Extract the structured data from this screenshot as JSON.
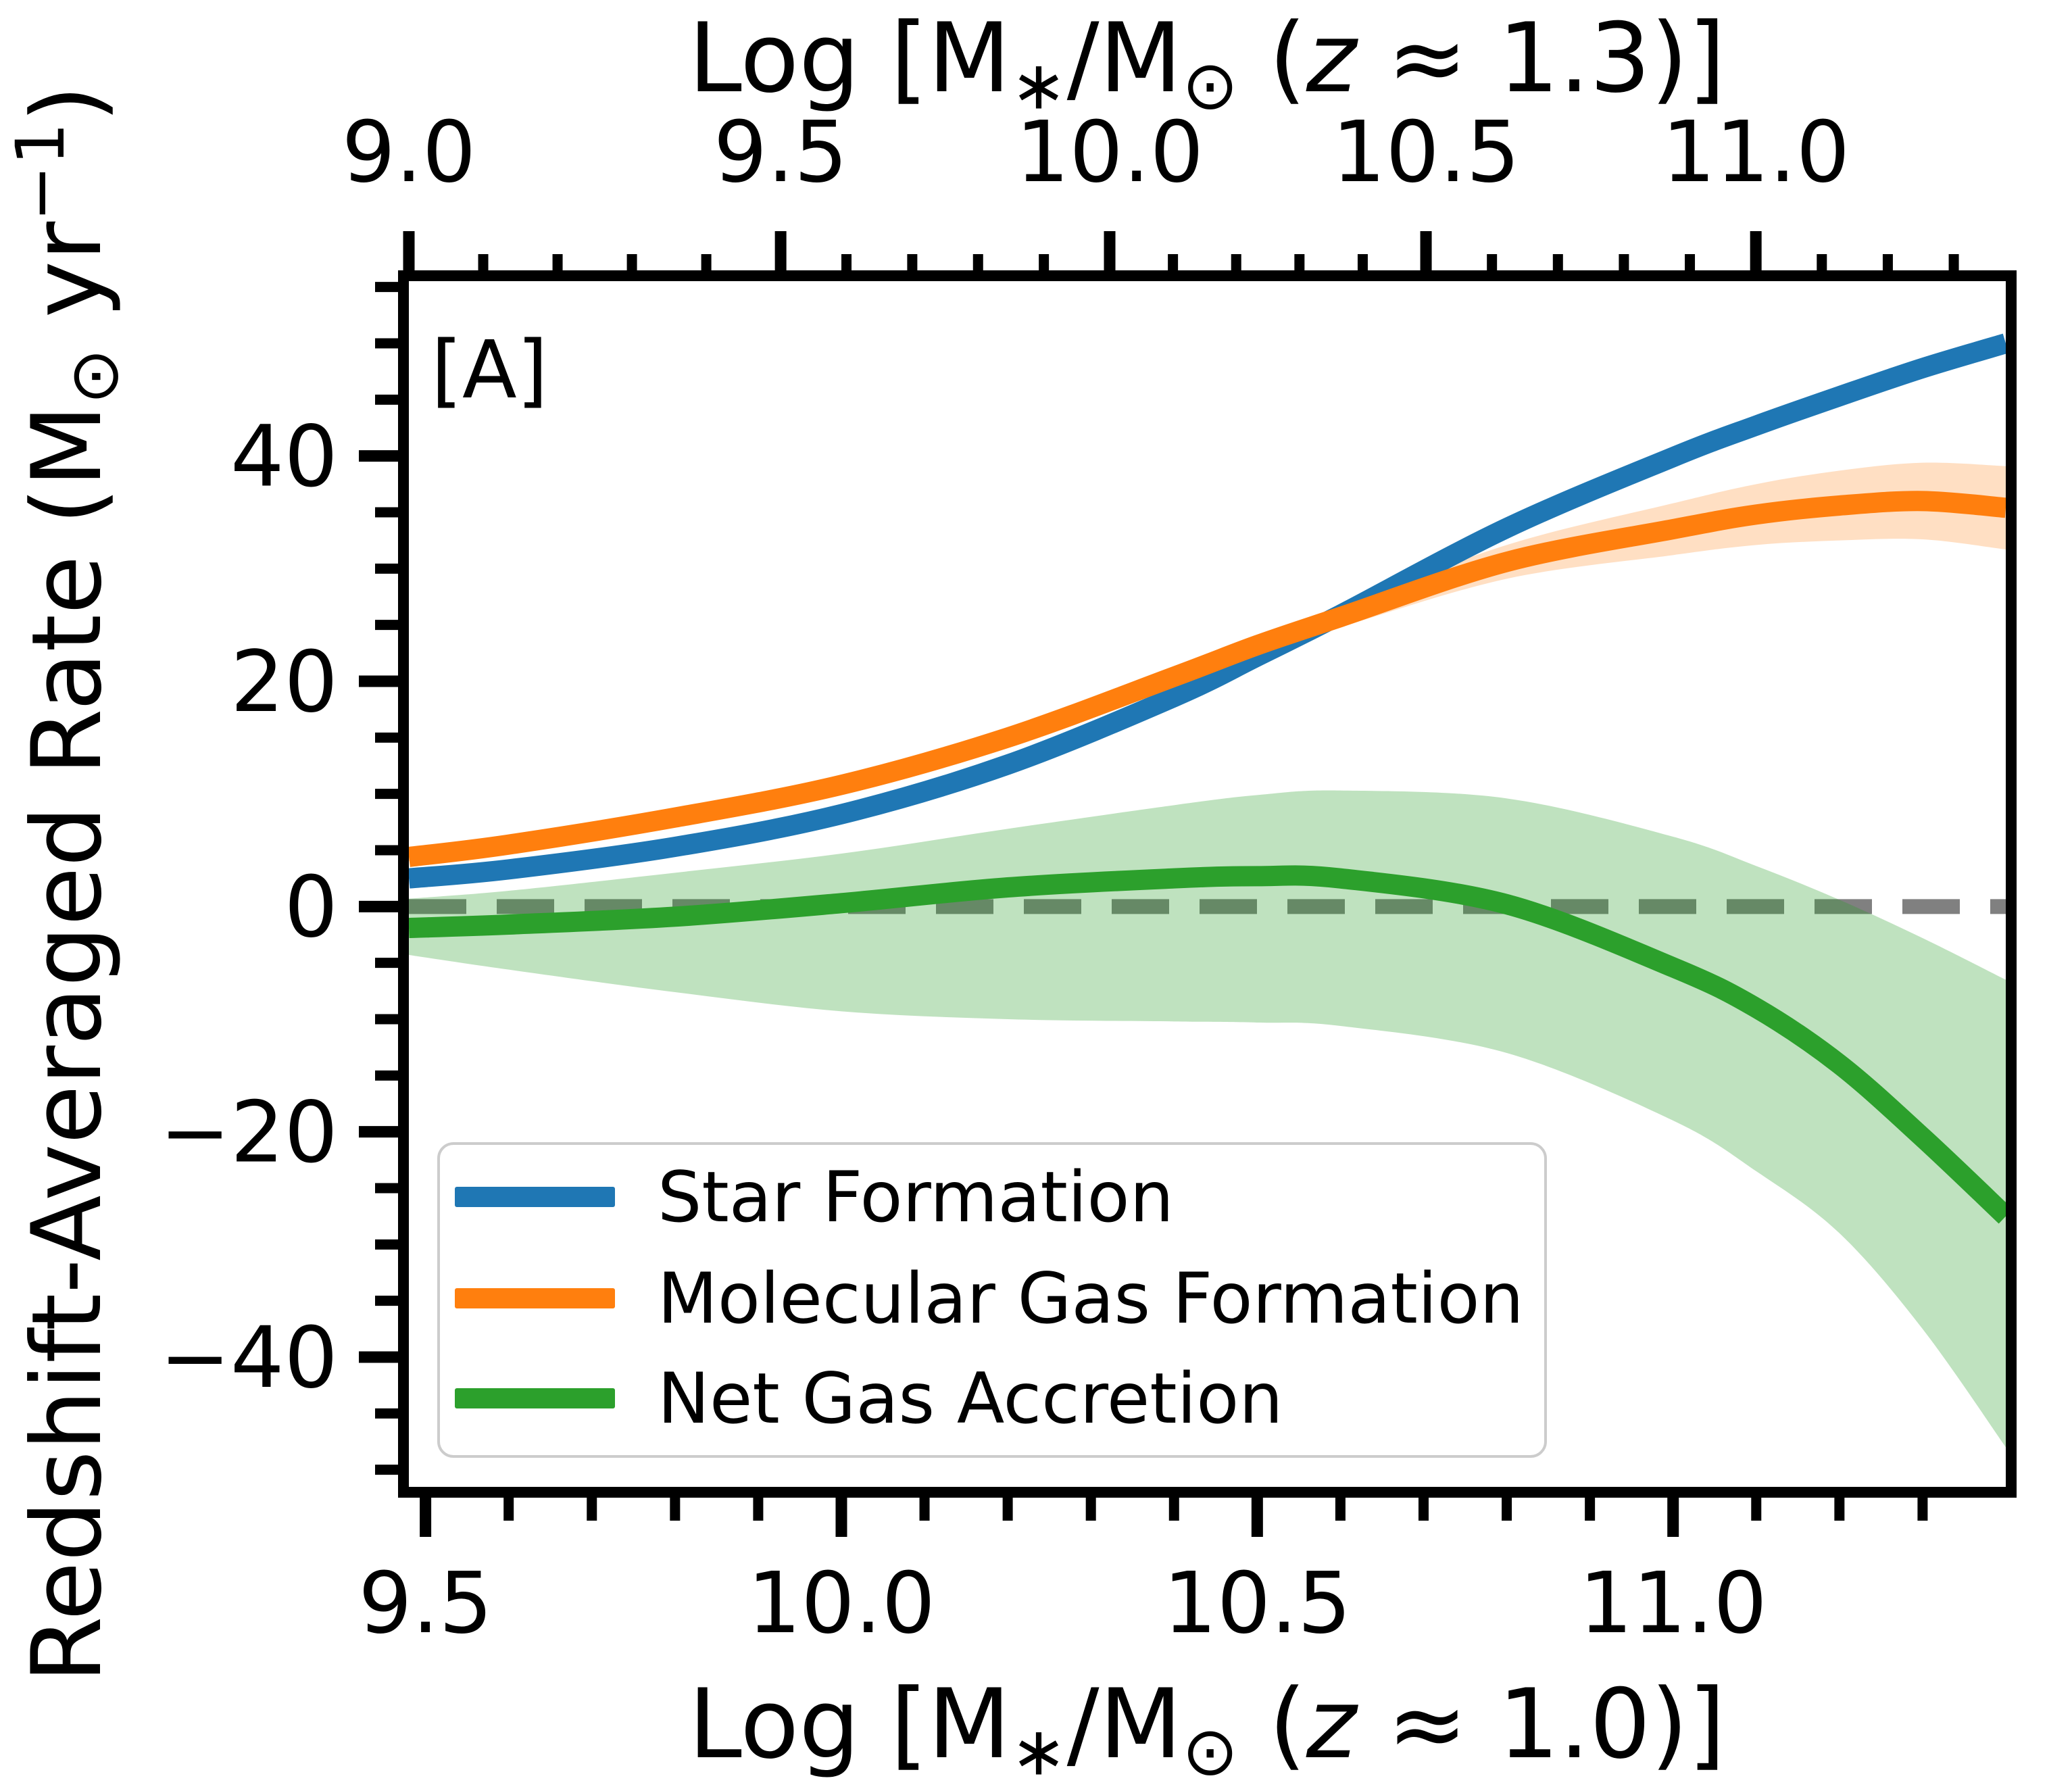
{
  "panel_label": "[A]",
  "colors": {
    "star_formation": "#1f77b4",
    "molecular_gas_formation": "#ff7f0e",
    "net_gas_accretion": "#2ca02c",
    "zero_line": "#808080",
    "spine": "#000000",
    "legend_border": "#cccccc",
    "background": "#ffffff"
  },
  "chart_data": {
    "type": "line",
    "title": "",
    "panel_tag": "[A]",
    "x_axis_bottom": {
      "label_parts": [
        {
          "t": "Log [M"
        },
        {
          "t": "∗",
          "sub": true
        },
        {
          "t": "/M"
        },
        {
          "t": "⊙",
          "sub": true
        },
        {
          "t": " ("
        },
        {
          "t": "z",
          "italic": true
        },
        {
          "t": " ≈ 1.0)]"
        }
      ],
      "lim": [
        9.48,
        11.4
      ],
      "major_ticks": [
        {
          "v": 9.5,
          "label": "9.5"
        },
        {
          "v": 10.0,
          "label": "10.0"
        },
        {
          "v": 10.5,
          "label": "10.5"
        },
        {
          "v": 11.0,
          "label": "11.0"
        }
      ],
      "minor_step": 0.1,
      "minor_range": [
        9.6,
        11.3
      ]
    },
    "x_axis_top": {
      "label_parts": [
        {
          "t": "Log [M"
        },
        {
          "t": "∗",
          "sub": true
        },
        {
          "t": "/M"
        },
        {
          "t": "⊙",
          "sub": true
        },
        {
          "t": " ("
        },
        {
          "t": "z",
          "italic": true
        },
        {
          "t": " ≈ 1.3)]"
        }
      ],
      "major_ticks": [
        {
          "v": 9.0,
          "label": "9.0"
        },
        {
          "v": 9.5,
          "label": "9.5"
        },
        {
          "v": 10.0,
          "label": "10.0"
        },
        {
          "v": 10.5,
          "label": "10.5"
        },
        {
          "v": 11.0,
          "label": "11.0"
        }
      ],
      "anchors": [
        [
          9.0,
          9.48
        ],
        [
          9.5,
          9.927
        ],
        [
          10.0,
          10.3226
        ],
        [
          10.5,
          10.7029
        ],
        [
          11.0,
          11.0995
        ]
      ],
      "slope_beyond": 0.7933,
      "minor_step": 0.1,
      "minor_range": [
        9.1,
        11.3
      ]
    },
    "y_axis": {
      "label_parts": [
        {
          "t": "Redshift-Averaged Rate (M"
        },
        {
          "t": "⊙",
          "sub": true
        },
        {
          "t": " yr"
        },
        {
          "t": "−1",
          "sup": true
        },
        {
          "t": ")"
        }
      ],
      "lim": [
        -52,
        56
      ],
      "major_ticks": [
        {
          "v": 40,
          "label": "40"
        },
        {
          "v": 20,
          "label": "20"
        },
        {
          "v": 0,
          "label": "0"
        },
        {
          "v": -20,
          "label": "−20"
        },
        {
          "v": -40,
          "label": "−40"
        }
      ],
      "minor_step": 5
    },
    "zero_line": {
      "y": 0,
      "color": "#808080",
      "dash": [
        85,
        45
      ],
      "width": 22
    },
    "x": [
      9.48,
      9.6,
      9.8,
      10.0,
      10.2,
      10.4,
      10.5,
      10.6,
      10.8,
      11.0,
      11.1,
      11.2,
      11.3,
      11.4
    ],
    "series": [
      {
        "name": "Star Formation",
        "color": "#1f77b4",
        "width": 30,
        "y": [
          2.5,
          3.3,
          5.3,
          8.2,
          12.6,
          18.6,
          22.2,
          25.9,
          33.6,
          39.9,
          42.7,
          45.3,
          47.8,
          50.0
        ]
      },
      {
        "name": "Molecular Gas Formation",
        "color": "#ff7f0e",
        "width": 30,
        "band_opacity": 0.25,
        "y": [
          4.4,
          5.5,
          7.9,
          10.8,
          15.0,
          20.4,
          23.2,
          25.7,
          30.6,
          33.5,
          34.8,
          35.6,
          36.0,
          35.4
        ],
        "band_top": [
          4.75,
          5.85,
          8.3,
          11.25,
          15.5,
          21.0,
          23.9,
          26.6,
          32.1,
          35.8,
          37.5,
          38.7,
          39.4,
          39.1
        ],
        "band_bottom": [
          4.05,
          5.15,
          7.5,
          10.35,
          14.5,
          19.8,
          22.5,
          24.8,
          29.1,
          31.2,
          32.1,
          32.5,
          32.6,
          31.7
        ]
      },
      {
        "name": "Net Gas Accretion",
        "color": "#2ca02c",
        "width": 30,
        "band_opacity": 0.3,
        "y": [
          -1.9,
          -1.6,
          -0.9,
          0.3,
          1.7,
          2.5,
          2.7,
          2.5,
          0.2,
          -5.4,
          -9.0,
          -14.0,
          -20.5,
          -27.5
        ],
        "band_top": [
          0.7,
          1.4,
          3.0,
          4.7,
          6.9,
          9.0,
          9.9,
          10.3,
          9.6,
          6.2,
          3.6,
          0.6,
          -2.8,
          -6.5
        ],
        "band_bottom": [
          -4.3,
          -5.6,
          -7.6,
          -9.3,
          -10.0,
          -10.2,
          -10.3,
          -10.6,
          -13.0,
          -19.0,
          -23.5,
          -29.0,
          -37.5,
          -48.0
        ]
      }
    ],
    "legend": {
      "position": "lower left",
      "entries": [
        "Star Formation",
        "Molecular Gas Formation",
        "Net Gas Accretion"
      ]
    }
  }
}
